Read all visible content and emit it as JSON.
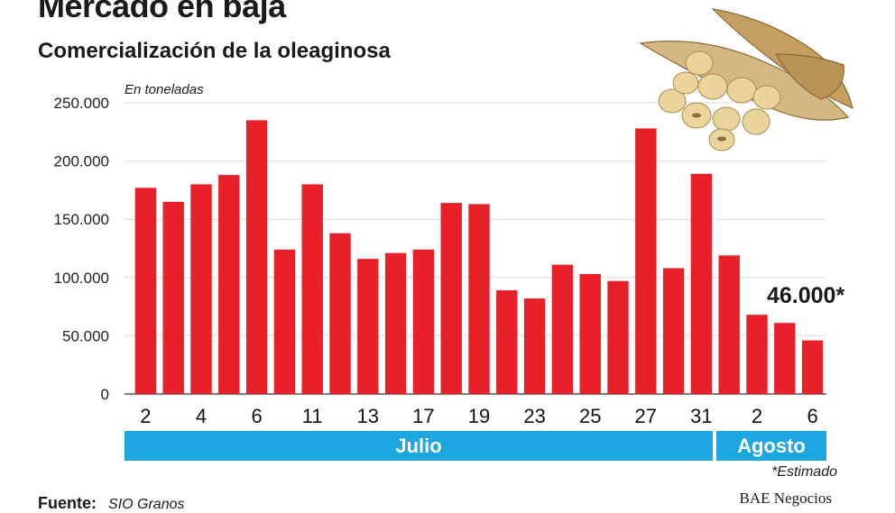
{
  "header": {
    "title": "Mercado en baja",
    "subtitle": "Comercialización de la oleaginosa",
    "units": "En toneladas"
  },
  "chart_data": {
    "type": "bar",
    "bar_color": "#e8202a",
    "grid": true,
    "ylim": [
      0,
      250000
    ],
    "y_ticks": [
      0,
      50000,
      100000,
      150000,
      200000,
      250000
    ],
    "y_tick_labels": [
      "0",
      "50.000",
      "100.000",
      "150.000",
      "200.000",
      "250.000"
    ],
    "x_tick_labels": [
      "2",
      "4",
      "6",
      "11",
      "13",
      "17",
      "19",
      "23",
      "25",
      "27",
      "31",
      "2",
      "6"
    ],
    "values": [
      177000,
      165000,
      180000,
      188000,
      235000,
      124000,
      180000,
      138000,
      116000,
      121000,
      124000,
      164000,
      163000,
      89000,
      82000,
      111000,
      103000,
      97000,
      228000,
      108000,
      189000,
      119000,
      68000,
      61000,
      46000
    ],
    "annotation": "46.000*",
    "months": [
      {
        "label": "Julio"
      },
      {
        "label": "Agosto"
      }
    ]
  },
  "footer": {
    "note": "*Estimado",
    "source_label": "Fuente:",
    "source_value": "SIO Granos",
    "credit": "BAE Negocios"
  },
  "colors": {
    "bar": "#e8202a",
    "month_band": "#1da7e0",
    "grid": "#d9d9d9"
  }
}
